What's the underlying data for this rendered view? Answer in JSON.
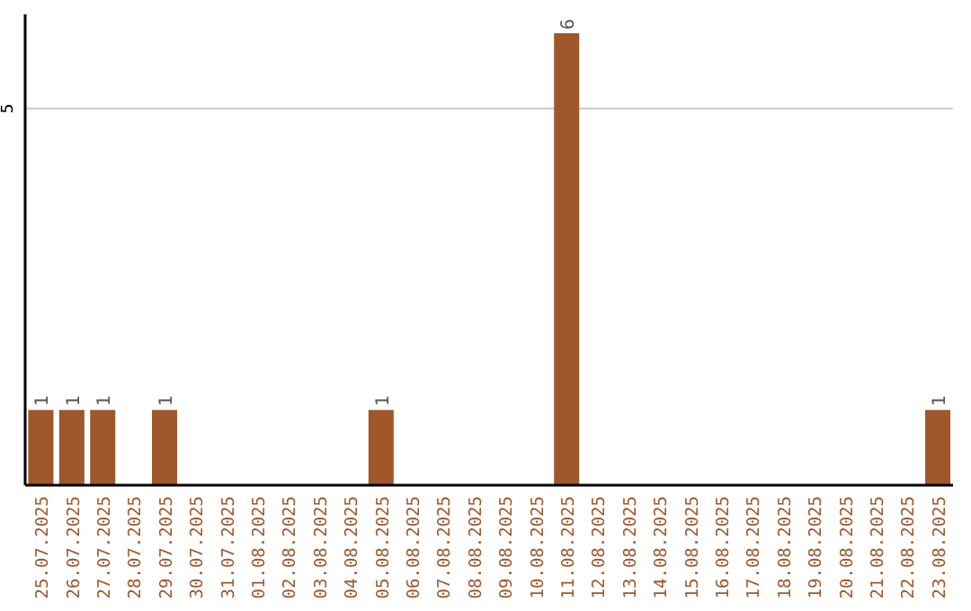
{
  "chart_data": {
    "type": "bar",
    "categories": [
      "25.07.2025",
      "26.07.2025",
      "27.07.2025",
      "28.07.2025",
      "29.07.2025",
      "30.07.2025",
      "31.07.2025",
      "01.08.2025",
      "02.08.2025",
      "03.08.2025",
      "04.08.2025",
      "05.08.2025",
      "06.08.2025",
      "07.08.2025",
      "08.08.2025",
      "09.08.2025",
      "10.08.2025",
      "11.08.2025",
      "12.08.2025",
      "13.08.2025",
      "14.08.2025",
      "15.08.2025",
      "16.08.2025",
      "17.08.2025",
      "18.08.2025",
      "19.08.2025",
      "20.08.2025",
      "21.08.2025",
      "22.08.2025",
      "23.08.2025"
    ],
    "values": [
      1,
      1,
      1,
      0,
      1,
      0,
      0,
      0,
      0,
      0,
      0,
      1,
      0,
      0,
      0,
      0,
      0,
      6,
      0,
      0,
      0,
      0,
      0,
      0,
      0,
      0,
      0,
      0,
      0,
      1
    ],
    "value_labels": [
      "1",
      "1",
      "1",
      null,
      "1",
      null,
      null,
      null,
      null,
      null,
      null,
      "1",
      null,
      null,
      null,
      null,
      null,
      "6",
      null,
      null,
      null,
      null,
      null,
      null,
      null,
      null,
      null,
      null,
      null,
      "1"
    ],
    "color": "#a0572a",
    "ylim": [
      0,
      6.25
    ],
    "yticks": [
      5
    ],
    "grid": "y"
  }
}
